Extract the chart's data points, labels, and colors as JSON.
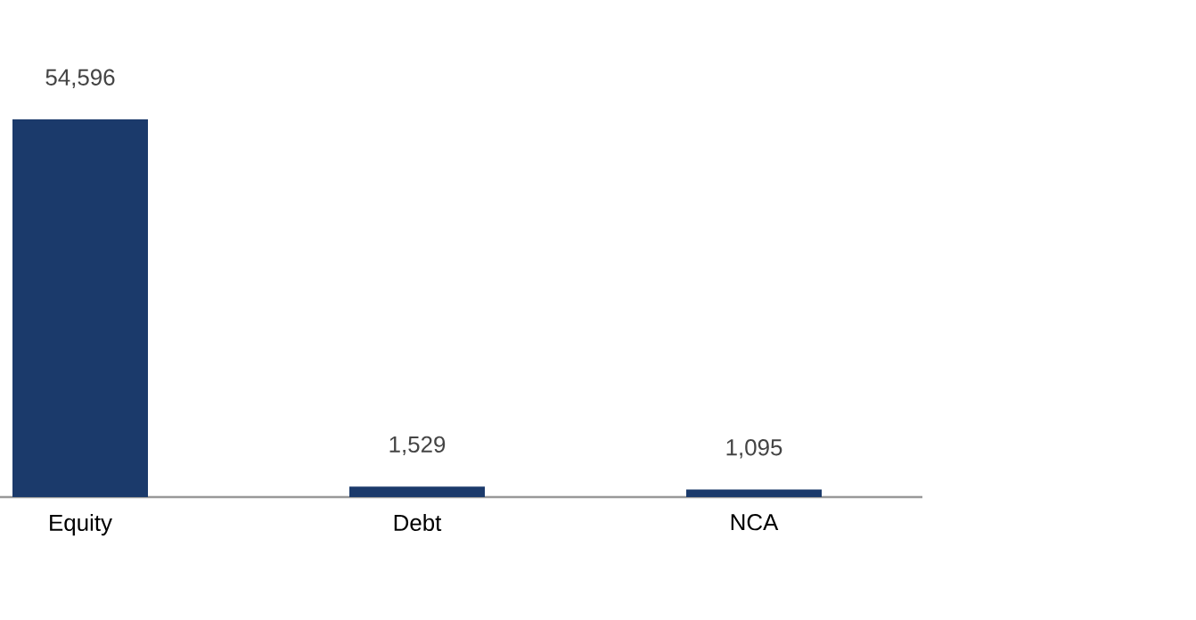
{
  "chart_data": {
    "type": "bar",
    "categories": [
      "Equity",
      "Debt",
      "NCA"
    ],
    "values": [
      54596,
      1529,
      1095
    ],
    "value_labels": [
      "54,596",
      "1,529",
      "1,095"
    ],
    "color": "#1b3a6b"
  }
}
